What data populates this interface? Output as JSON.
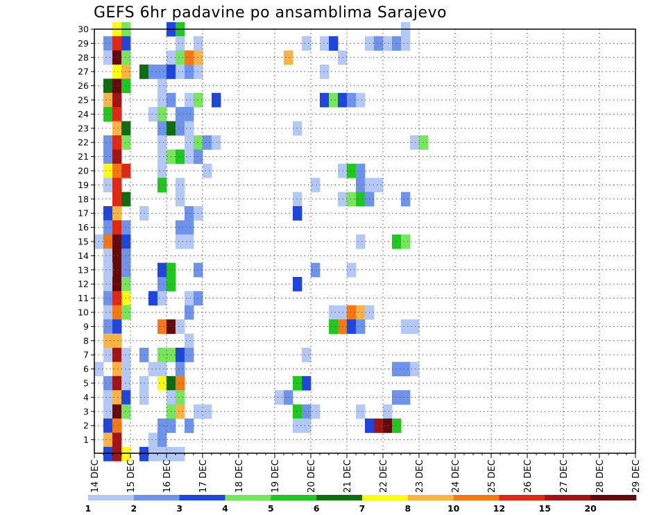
{
  "chart_data": {
    "type": "heatmap",
    "title": "GEFS 6hr padavine po ansamblima Sarajevo",
    "xlabel": "",
    "ylabel": "",
    "y_ticks": [
      "1",
      "2",
      "3",
      "4",
      "5",
      "6",
      "7",
      "8",
      "9",
      "10",
      "11",
      "12",
      "13",
      "14",
      "15",
      "16",
      "17",
      "18",
      "19",
      "20",
      "21",
      "22",
      "23",
      "24",
      "25",
      "26",
      "27",
      "28",
      "29",
      "30"
    ],
    "x_ticks": [
      "14 DEC",
      "15 DEC",
      "16 DEC",
      "17 DEC",
      "18 DEC",
      "19 DEC",
      "20 DEC",
      "21 DEC",
      "22 DEC",
      "23 DEC",
      "24 DEC",
      "25 DEC",
      "26 DEC",
      "27 DEC",
      "28 DEC",
      "29 DEC"
    ],
    "x_range": [
      "14 DEC 00Z",
      "29 DEC 00Z"
    ],
    "time_step_hours": 6,
    "legend": {
      "position": "bottom",
      "colors": [
        "#b4c8f5",
        "#6e93ea",
        "#1e46dc",
        "#76e65c",
        "#1ec81e",
        "#0e6e0e",
        "#fbfb14",
        "#fab446",
        "#f57814",
        "#e12814",
        "#a01414",
        "#640a0a"
      ],
      "labels": [
        "1",
        "2",
        "3",
        "4",
        "5",
        "6",
        "7",
        "8",
        "10",
        "12",
        "15",
        "20"
      ]
    },
    "note_cell_format": "[member, column, color-level]; column = 6h step from 14 DEC 00Z; levels: 1..12 index into legend.colors",
    "cells": [
      [
        30,
        2,
        7
      ],
      [
        30,
        3,
        4
      ],
      [
        30,
        8,
        3
      ],
      [
        30,
        9,
        5
      ],
      [
        30,
        34,
        1
      ],
      [
        29,
        1,
        2
      ],
      [
        29,
        2,
        10
      ],
      [
        29,
        3,
        3
      ],
      [
        29,
        9,
        1
      ],
      [
        29,
        11,
        1
      ],
      [
        29,
        23,
        1
      ],
      [
        29,
        25,
        1
      ],
      [
        29,
        26,
        3
      ],
      [
        29,
        30,
        1
      ],
      [
        29,
        31,
        2
      ],
      [
        29,
        32,
        1
      ],
      [
        29,
        33,
        2
      ],
      [
        29,
        34,
        1
      ],
      [
        28,
        1,
        1
      ],
      [
        28,
        2,
        12
      ],
      [
        28,
        3,
        4
      ],
      [
        28,
        8,
        1
      ],
      [
        28,
        9,
        4
      ],
      [
        28,
        10,
        9
      ],
      [
        28,
        11,
        8
      ],
      [
        28,
        21,
        8
      ],
      [
        28,
        27,
        1
      ],
      [
        27,
        2,
        7
      ],
      [
        27,
        3,
        8
      ],
      [
        27,
        5,
        6
      ],
      [
        27,
        6,
        2
      ],
      [
        27,
        7,
        2
      ],
      [
        27,
        8,
        3
      ],
      [
        27,
        9,
        1
      ],
      [
        27,
        10,
        2
      ],
      [
        27,
        11,
        1
      ],
      [
        27,
        25,
        1
      ],
      [
        26,
        1,
        6
      ],
      [
        26,
        2,
        12
      ],
      [
        26,
        3,
        5
      ],
      [
        26,
        7,
        1
      ],
      [
        25,
        1,
        8
      ],
      [
        25,
        2,
        11
      ],
      [
        25,
        7,
        1
      ],
      [
        25,
        8,
        2
      ],
      [
        25,
        10,
        1
      ],
      [
        25,
        11,
        4
      ],
      [
        25,
        13,
        3
      ],
      [
        25,
        25,
        3
      ],
      [
        25,
        26,
        4
      ],
      [
        25,
        27,
        3
      ],
      [
        25,
        28,
        2
      ],
      [
        25,
        29,
        1
      ],
      [
        24,
        1,
        5
      ],
      [
        24,
        2,
        10
      ],
      [
        24,
        6,
        1
      ],
      [
        24,
        7,
        4
      ],
      [
        24,
        9,
        2
      ],
      [
        24,
        10,
        2
      ],
      [
        23,
        2,
        8
      ],
      [
        23,
        3,
        6
      ],
      [
        23,
        7,
        2
      ],
      [
        23,
        8,
        6
      ],
      [
        23,
        9,
        2
      ],
      [
        23,
        10,
        1
      ],
      [
        23,
        22,
        1
      ],
      [
        22,
        1,
        2
      ],
      [
        22,
        2,
        10
      ],
      [
        22,
        3,
        4
      ],
      [
        22,
        7,
        1
      ],
      [
        22,
        10,
        1
      ],
      [
        22,
        11,
        4
      ],
      [
        22,
        12,
        2
      ],
      [
        22,
        13,
        1
      ],
      [
        22,
        35,
        1
      ],
      [
        22,
        36,
        4
      ],
      [
        21,
        1,
        2
      ],
      [
        21,
        2,
        11
      ],
      [
        21,
        7,
        1
      ],
      [
        21,
        8,
        4
      ],
      [
        21,
        9,
        5
      ],
      [
        21,
        10,
        1
      ],
      [
        21,
        11,
        2
      ],
      [
        20,
        1,
        7
      ],
      [
        20,
        2,
        9
      ],
      [
        20,
        3,
        10
      ],
      [
        20,
        7,
        1
      ],
      [
        20,
        12,
        1
      ],
      [
        20,
        27,
        1
      ],
      [
        20,
        28,
        5
      ],
      [
        20,
        29,
        2
      ],
      [
        19,
        1,
        1
      ],
      [
        19,
        2,
        10
      ],
      [
        19,
        7,
        5
      ],
      [
        19,
        9,
        1
      ],
      [
        19,
        24,
        1
      ],
      [
        19,
        29,
        2
      ],
      [
        19,
        30,
        1
      ],
      [
        19,
        31,
        1
      ],
      [
        18,
        2,
        10
      ],
      [
        18,
        3,
        6
      ],
      [
        18,
        9,
        1
      ],
      [
        18,
        22,
        1
      ],
      [
        18,
        27,
        1
      ],
      [
        18,
        28,
        4
      ],
      [
        18,
        29,
        5
      ],
      [
        18,
        30,
        2
      ],
      [
        18,
        34,
        2
      ],
      [
        17,
        1,
        3
      ],
      [
        17,
        2,
        8
      ],
      [
        17,
        5,
        1
      ],
      [
        17,
        10,
        2
      ],
      [
        17,
        11,
        1
      ],
      [
        17,
        22,
        3
      ],
      [
        16,
        1,
        2
      ],
      [
        16,
        2,
        10
      ],
      [
        16,
        3,
        2
      ],
      [
        16,
        9,
        2
      ],
      [
        16,
        10,
        2
      ],
      [
        15,
        0,
        1
      ],
      [
        15,
        1,
        9
      ],
      [
        15,
        2,
        12
      ],
      [
        15,
        3,
        3
      ],
      [
        15,
        9,
        1
      ],
      [
        15,
        10,
        1
      ],
      [
        15,
        29,
        1
      ],
      [
        15,
        33,
        5
      ],
      [
        15,
        34,
        4
      ],
      [
        14,
        1,
        1
      ],
      [
        14,
        2,
        12
      ],
      [
        14,
        3,
        2
      ],
      [
        13,
        1,
        1
      ],
      [
        13,
        2,
        12
      ],
      [
        13,
        3,
        2
      ],
      [
        13,
        7,
        3
      ],
      [
        13,
        8,
        5
      ],
      [
        13,
        11,
        2
      ],
      [
        13,
        24,
        2
      ],
      [
        13,
        28,
        1
      ],
      [
        12,
        1,
        1
      ],
      [
        13,
        1,
        1
      ],
      [
        12,
        2,
        12
      ],
      [
        12,
        3,
        4
      ],
      [
        12,
        7,
        2
      ],
      [
        12,
        8,
        5
      ],
      [
        12,
        22,
        3
      ],
      [
        11,
        1,
        2
      ],
      [
        11,
        2,
        10
      ],
      [
        11,
        3,
        7
      ],
      [
        11,
        6,
        3
      ],
      [
        11,
        7,
        1
      ],
      [
        11,
        10,
        1
      ],
      [
        11,
        11,
        2
      ],
      [
        10,
        1,
        1
      ],
      [
        10,
        2,
        9
      ],
      [
        10,
        3,
        4
      ],
      [
        10,
        10,
        2
      ],
      [
        10,
        26,
        1
      ],
      [
        10,
        27,
        1
      ],
      [
        10,
        28,
        9
      ],
      [
        10,
        29,
        8
      ],
      [
        10,
        30,
        1
      ],
      [
        9,
        1,
        2
      ],
      [
        9,
        2,
        3
      ],
      [
        9,
        7,
        9
      ],
      [
        9,
        8,
        12
      ],
      [
        9,
        9,
        1
      ],
      [
        9,
        26,
        5
      ],
      [
        9,
        27,
        9
      ],
      [
        9,
        28,
        3
      ],
      [
        9,
        29,
        2
      ],
      [
        9,
        34,
        1
      ],
      [
        9,
        35,
        1
      ],
      [
        8,
        1,
        8
      ],
      [
        8,
        2,
        8
      ],
      [
        8,
        10,
        1
      ],
      [
        7,
        1,
        1
      ],
      [
        7,
        2,
        11
      ],
      [
        7,
        3,
        1
      ],
      [
        7,
        5,
        2
      ],
      [
        7,
        7,
        4
      ],
      [
        7,
        8,
        4
      ],
      [
        7,
        9,
        3
      ],
      [
        7,
        10,
        2
      ],
      [
        7,
        23,
        1
      ],
      [
        6,
        0,
        1
      ],
      [
        6,
        2,
        8
      ],
      [
        6,
        3,
        1
      ],
      [
        6,
        6,
        1
      ],
      [
        6,
        7,
        1
      ],
      [
        6,
        9,
        2
      ],
      [
        6,
        33,
        2
      ],
      [
        6,
        34,
        2
      ],
      [
        6,
        35,
        1
      ],
      [
        5,
        1,
        2
      ],
      [
        5,
        2,
        11
      ],
      [
        5,
        3,
        1
      ],
      [
        5,
        5,
        1
      ],
      [
        5,
        7,
        7
      ],
      [
        5,
        8,
        6
      ],
      [
        5,
        9,
        9
      ],
      [
        5,
        22,
        5
      ],
      [
        5,
        23,
        3
      ],
      [
        4,
        1,
        1
      ],
      [
        4,
        2,
        8
      ],
      [
        4,
        3,
        3
      ],
      [
        4,
        5,
        1
      ],
      [
        4,
        8,
        1
      ],
      [
        4,
        9,
        4
      ],
      [
        4,
        20,
        1
      ],
      [
        4,
        21,
        2
      ],
      [
        4,
        33,
        2
      ],
      [
        4,
        34,
        2
      ],
      [
        3,
        1,
        1
      ],
      [
        3,
        2,
        12
      ],
      [
        3,
        3,
        4
      ],
      [
        3,
        8,
        4
      ],
      [
        3,
        9,
        8
      ],
      [
        3,
        11,
        1
      ],
      [
        3,
        12,
        1
      ],
      [
        3,
        22,
        5
      ],
      [
        3,
        23,
        2
      ],
      [
        3,
        24,
        1
      ],
      [
        3,
        29,
        1
      ],
      [
        3,
        32,
        1
      ],
      [
        2,
        1,
        3
      ],
      [
        2,
        2,
        9
      ],
      [
        2,
        7,
        2
      ],
      [
        2,
        8,
        2
      ],
      [
        2,
        10,
        2
      ],
      [
        2,
        22,
        1
      ],
      [
        2,
        23,
        1
      ],
      [
        2,
        30,
        3
      ],
      [
        2,
        31,
        11
      ],
      [
        2,
        32,
        12
      ],
      [
        2,
        33,
        5
      ],
      [
        1,
        1,
        8
      ],
      [
        1,
        2,
        11
      ],
      [
        1,
        6,
        1
      ],
      [
        1,
        7,
        2
      ],
      [
        0,
        1,
        3
      ],
      [
        0,
        2,
        11
      ],
      [
        0,
        3,
        7
      ],
      [
        0,
        5,
        3
      ],
      [
        0,
        6,
        1
      ],
      [
        0,
        7,
        1
      ],
      [
        0,
        8,
        1
      ],
      [
        0,
        9,
        1
      ]
    ]
  }
}
